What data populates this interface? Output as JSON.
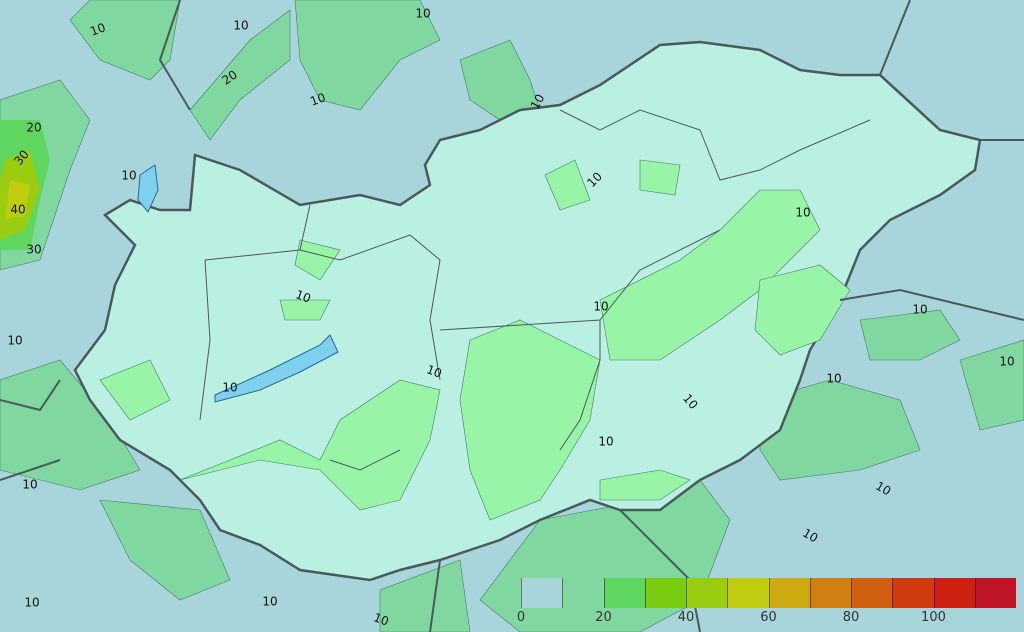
{
  "map": {
    "colors": {
      "outside_low": "#a8d5db",
      "outside_mid": "#80d8a0",
      "inside_low": "#b9f0e2",
      "inside_mid": "#98f5a8",
      "border": "#4a5a5a",
      "lake": "#7fd0ee"
    },
    "contour_labels": [
      "10",
      "10",
      "10",
      "20",
      "10",
      "10",
      "20",
      "30",
      "40",
      "30",
      "10",
      "10",
      "10",
      "10",
      "10",
      "10",
      "10",
      "10",
      "10",
      "10",
      "10",
      "10",
      "10",
      "10",
      "10",
      "10",
      "10",
      "10",
      "10"
    ]
  },
  "legend": {
    "bins": [
      "#a8d5db",
      "#80d8a0",
      "#5fd65f",
      "#7acc10",
      "#9acd10",
      "#c0cc10",
      "#ccaa10",
      "#d08010",
      "#d06010",
      "#d03c10",
      "#cc2010",
      "#c01428"
    ],
    "ticks": [
      "0",
      "20",
      "40",
      "60",
      "80",
      "100"
    ]
  }
}
